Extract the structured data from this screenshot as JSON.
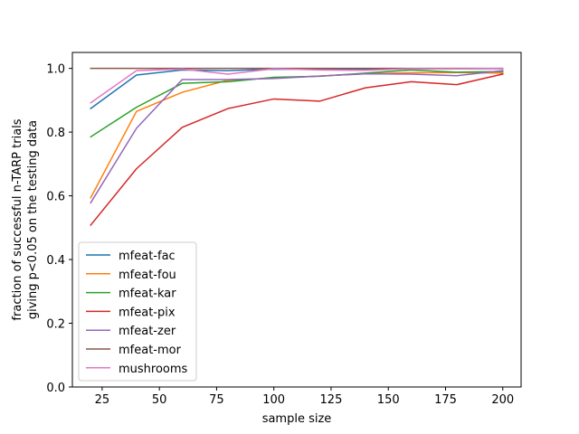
{
  "chart_data": {
    "type": "line",
    "xlabel": "sample size",
    "ylabel_lines": [
      "fraction of successful n-TARP trials",
      "giving p<0.05 on the testing data"
    ],
    "xlim": [
      12,
      208
    ],
    "ylim": [
      0,
      1.05
    ],
    "xticks": [
      25,
      50,
      75,
      100,
      125,
      150,
      175,
      200
    ],
    "yticks": [
      0.0,
      0.2,
      0.4,
      0.6,
      0.8,
      1.0
    ],
    "ytick_labels": [
      "0.0",
      "0.2",
      "0.4",
      "0.6",
      "0.8",
      "1.0"
    ],
    "grid": false,
    "legend_position": "lower-left",
    "x": [
      20,
      40,
      60,
      80,
      100,
      120,
      140,
      160,
      180,
      200
    ],
    "series": [
      {
        "name": "mfeat-fac",
        "color": "#1f77b4",
        "values": [
          0.874,
          0.979,
          0.995,
          0.993,
          0.997,
          0.998,
          0.998,
          0.999,
          0.999,
          0.999
        ]
      },
      {
        "name": "mfeat-fou",
        "color": "#ff7f0e",
        "values": [
          0.594,
          0.865,
          0.925,
          0.963,
          0.97,
          0.976,
          0.983,
          0.986,
          0.987,
          0.985
        ]
      },
      {
        "name": "mfeat-kar",
        "color": "#2ca02c",
        "values": [
          0.785,
          0.878,
          0.953,
          0.958,
          0.972,
          0.975,
          0.985,
          0.995,
          0.988,
          0.99
        ]
      },
      {
        "name": "mfeat-pix",
        "color": "#d62728",
        "values": [
          0.508,
          0.685,
          0.815,
          0.874,
          0.904,
          0.897,
          0.939,
          0.958,
          0.949,
          0.982
        ]
      },
      {
        "name": "mfeat-zer",
        "color": "#9467bd",
        "values": [
          0.578,
          0.812,
          0.965,
          0.965,
          0.968,
          0.976,
          0.983,
          0.982,
          0.977,
          0.993
        ]
      },
      {
        "name": "mfeat-mor",
        "color": "#8c564b",
        "values": [
          1.0,
          1.0,
          1.0,
          1.0,
          1.0,
          1.0,
          1.0,
          1.0,
          1.0,
          1.0
        ]
      },
      {
        "name": "mushrooms",
        "color": "#e377c2",
        "values": [
          0.892,
          0.993,
          0.998,
          0.982,
          0.999,
          0.995,
          0.994,
          0.999,
          0.999,
          1.0
        ]
      }
    ]
  }
}
